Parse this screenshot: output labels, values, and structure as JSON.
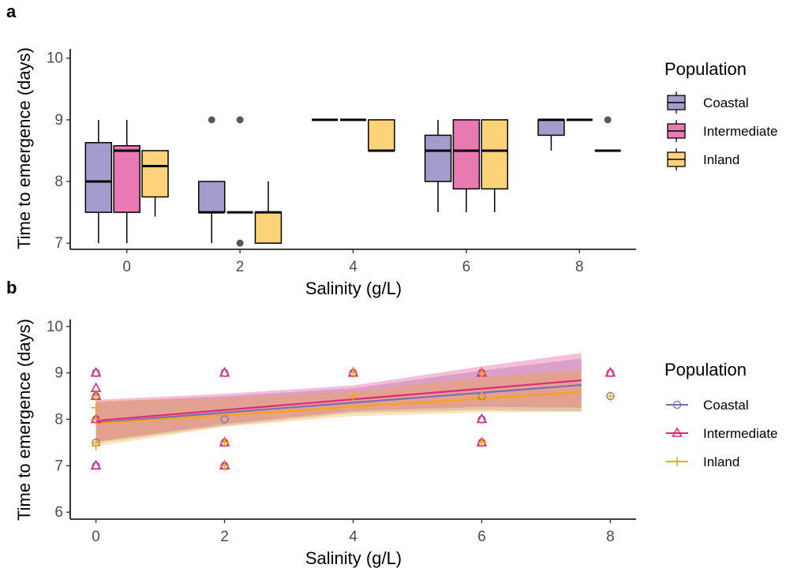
{
  "colors": {
    "Coastal": "#a39ccc",
    "Intermediate": "#e879b2",
    "Inland": "#fdd37a",
    "Coastal_line": "#7b6fb2",
    "Intermediate_line": "#e0287f",
    "Inland_line": "#f7a414",
    "outlier": "#595959"
  },
  "chart_data": [
    {
      "type": "box",
      "panel_label": "a",
      "xlabel": "Salinity (g/L)",
      "ylabel": "Time to emergence (days)",
      "xlim": [
        -1,
        9
      ],
      "ylim": [
        6.9,
        10.15
      ],
      "x_ticks": [
        "0",
        "2",
        "4",
        "6",
        "8"
      ],
      "y_ticks": [
        "7",
        "8",
        "9",
        "10"
      ],
      "grid": false,
      "legend": {
        "title": "Population",
        "position": "right",
        "items": [
          "Coastal",
          "Intermediate",
          "Inland"
        ]
      },
      "groups": [
        {
          "salinity": 0,
          "population": "Coastal",
          "min": 7.0,
          "q1": 7.5,
          "median": 8.0,
          "q3": 8.63,
          "max": 9.0,
          "outliers": []
        },
        {
          "salinity": 0,
          "population": "Intermediate",
          "min": 7.0,
          "q1": 7.5,
          "median": 8.5,
          "q3": 8.58,
          "max": 9.0,
          "outliers": []
        },
        {
          "salinity": 0,
          "population": "Inland",
          "min": 7.43,
          "q1": 7.75,
          "median": 8.25,
          "q3": 8.5,
          "max": 8.5,
          "outliers": []
        },
        {
          "salinity": 2,
          "population": "Coastal",
          "min": 7.0,
          "q1": 7.5,
          "median": 7.5,
          "q3": 8.0,
          "max": 8.0,
          "outliers": [
            9.0
          ]
        },
        {
          "salinity": 2,
          "population": "Intermediate",
          "min": 7.5,
          "q1": 7.5,
          "median": 7.5,
          "q3": 7.5,
          "max": 7.5,
          "outliers": [
            9.0,
            7.0
          ]
        },
        {
          "salinity": 2,
          "population": "Inland",
          "min": 7.0,
          "q1": 7.0,
          "median": 7.5,
          "q3": 7.5,
          "max": 8.0,
          "outliers": []
        },
        {
          "salinity": 4,
          "population": "Coastal",
          "min": 9.0,
          "q1": 9.0,
          "median": 9.0,
          "q3": 9.0,
          "max": 9.0,
          "outliers": []
        },
        {
          "salinity": 4,
          "population": "Intermediate",
          "min": 9.0,
          "q1": 9.0,
          "median": 9.0,
          "q3": 9.0,
          "max": 9.0,
          "outliers": []
        },
        {
          "salinity": 4,
          "population": "Inland",
          "min": 8.5,
          "q1": 8.5,
          "median": 8.5,
          "q3": 9.0,
          "max": 9.0,
          "outliers": []
        },
        {
          "salinity": 6,
          "population": "Coastal",
          "min": 7.5,
          "q1": 8.0,
          "median": 8.5,
          "q3": 8.75,
          "max": 9.0,
          "outliers": []
        },
        {
          "salinity": 6,
          "population": "Intermediate",
          "min": 7.5,
          "q1": 7.88,
          "median": 8.5,
          "q3": 9.0,
          "max": 9.0,
          "outliers": []
        },
        {
          "salinity": 6,
          "population": "Inland",
          "min": 7.5,
          "q1": 7.88,
          "median": 8.5,
          "q3": 9.0,
          "max": 9.0,
          "outliers": []
        },
        {
          "salinity": 8,
          "population": "Coastal",
          "min": 8.5,
          "q1": 8.75,
          "median": 9.0,
          "q3": 9.0,
          "max": 9.0,
          "outliers": []
        },
        {
          "salinity": 8,
          "population": "Intermediate",
          "min": 9.0,
          "q1": 9.0,
          "median": 9.0,
          "q3": 9.0,
          "max": 9.0,
          "outliers": []
        },
        {
          "salinity": 8,
          "population": "Inland",
          "min": 8.5,
          "q1": 8.5,
          "median": 8.5,
          "q3": 8.5,
          "max": 8.5,
          "outliers": [
            9.0
          ]
        }
      ]
    },
    {
      "type": "scatter",
      "panel_label": "b",
      "xlabel": "Salinity (g/L)",
      "ylabel": "Time to emergence (days)",
      "xlim": [
        -0.4,
        8.4
      ],
      "ylim": [
        5.85,
        10.15
      ],
      "x_ticks": [
        "0",
        "2",
        "4",
        "6",
        "8"
      ],
      "y_ticks": [
        "6",
        "7",
        "8",
        "9",
        "10"
      ],
      "grid": false,
      "legend": {
        "title": "Population",
        "position": "right",
        "items": [
          "Coastal",
          "Intermediate",
          "Inland"
        ]
      },
      "series": [
        {
          "name": "Coastal",
          "marker": "circle",
          "points": [
            [
              0,
              7.0
            ],
            [
              0,
              7.5
            ],
            [
              0,
              8.0
            ],
            [
              0,
              8.5
            ],
            [
              0,
              9.0
            ],
            [
              2,
              7.0
            ],
            [
              2,
              7.5
            ],
            [
              2,
              8.0
            ],
            [
              2,
              9.0
            ],
            [
              4,
              9.0
            ],
            [
              6,
              7.5
            ],
            [
              6,
              8.0
            ],
            [
              6,
              8.5
            ],
            [
              6,
              9.0
            ],
            [
              8,
              8.5
            ],
            [
              8,
              9.0
            ]
          ],
          "fit": {
            "x0": 0,
            "y0": 7.93,
            "x1": 7.55,
            "y1": 8.74
          },
          "band": {
            "lower": [
              [
                0,
                7.49
              ],
              [
                2,
                7.86
              ],
              [
                4,
                8.14
              ],
              [
                6,
                8.2
              ],
              [
                7.55,
                8.17
              ]
            ],
            "upper": [
              [
                0,
                8.37
              ],
              [
                2,
                8.5
              ],
              [
                4,
                8.67
              ],
              [
                6,
                9.05
              ],
              [
                7.55,
                9.31
              ]
            ]
          }
        },
        {
          "name": "Intermediate",
          "marker": "triangle",
          "points": [
            [
              0,
              7.0
            ],
            [
              0,
              8.0
            ],
            [
              0,
              8.5
            ],
            [
              0,
              8.67
            ],
            [
              0,
              9.0
            ],
            [
              2,
              7.0
            ],
            [
              2,
              7.5
            ],
            [
              2,
              9.0
            ],
            [
              4,
              9.0
            ],
            [
              6,
              7.5
            ],
            [
              6,
              8.0
            ],
            [
              6,
              9.0
            ],
            [
              8,
              9.0
            ]
          ],
          "fit": {
            "x0": 0,
            "y0": 7.97,
            "x1": 7.55,
            "y1": 8.84
          },
          "band": {
            "lower": [
              [
                0,
                7.52
              ],
              [
                2,
                7.9
              ],
              [
                4,
                8.18
              ],
              [
                6,
                8.27
              ],
              [
                7.55,
                8.25
              ]
            ],
            "upper": [
              [
                0,
                8.42
              ],
              [
                2,
                8.55
              ],
              [
                4,
                8.73
              ],
              [
                6,
                9.14
              ],
              [
                7.55,
                9.43
              ]
            ]
          }
        },
        {
          "name": "Inland",
          "marker": "plus",
          "points": [
            [
              0,
              7.43
            ],
            [
              0,
              7.5
            ],
            [
              0,
              8.0
            ],
            [
              0,
              8.25
            ],
            [
              0,
              8.5
            ],
            [
              2,
              7.0
            ],
            [
              2,
              7.5
            ],
            [
              4,
              8.5
            ],
            [
              4,
              9.0
            ],
            [
              6,
              7.5
            ],
            [
              6,
              8.5
            ],
            [
              6,
              9.0
            ],
            [
              8,
              8.5
            ]
          ],
          "fit": {
            "x0": 0,
            "y0": 7.91,
            "x1": 7.55,
            "y1": 8.59
          },
          "band": {
            "lower": [
              [
                0,
                7.42
              ],
              [
                2,
                7.84
              ],
              [
                4,
                8.07
              ],
              [
                6,
                8.15
              ],
              [
                7.55,
                8.16
              ]
            ],
            "upper": [
              [
                0,
                8.4
              ],
              [
                2,
                8.46
              ],
              [
                4,
                8.6
              ],
              [
                6,
                8.9
              ],
              [
                7.55,
                9.07
              ]
            ]
          }
        }
      ]
    }
  ]
}
